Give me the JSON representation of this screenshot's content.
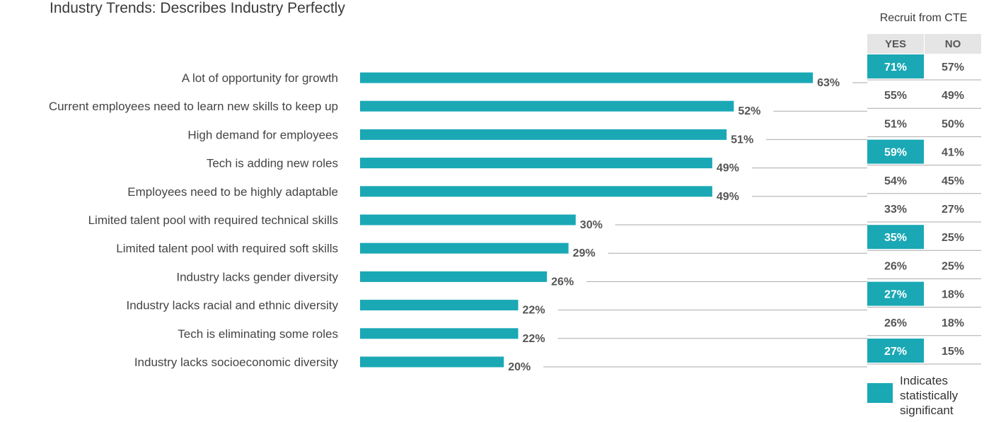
{
  "chart_data": {
    "type": "bar",
    "title": "Industry Trends: Describes Industry Perfectly",
    "categories": [
      "A lot of opportunity for growth",
      "Current employees need to learn new skills to keep up",
      "High demand for employees",
      "Tech is adding new roles",
      "Employees need to be highly adaptable",
      "Limited talent pool with required technical skills",
      "Limited talent pool with required soft skills",
      "Industry lacks gender diversity",
      "Industry lacks racial and ethnic diversity",
      "Tech is eliminating some roles",
      "Industry lacks socioeconomic diversity"
    ],
    "values": [
      63,
      52,
      51,
      49,
      49,
      30,
      29,
      26,
      22,
      22,
      20
    ],
    "value_labels": [
      "63%",
      "52%",
      "51%",
      "49%",
      "49%",
      "30%",
      "29%",
      "26%",
      "22%",
      "22%",
      "20%"
    ],
    "orientation": "horizontal",
    "bar_color": "#1aa8b5"
  },
  "table": {
    "caption": "Recruit from CTE",
    "columns": [
      "YES",
      "NO"
    ],
    "rows": [
      {
        "yes": "71%",
        "no": "57%",
        "yes_significant": true
      },
      {
        "yes": "55%",
        "no": "49%",
        "yes_significant": false
      },
      {
        "yes": "51%",
        "no": "50%",
        "yes_significant": false
      },
      {
        "yes": "59%",
        "no": "41%",
        "yes_significant": true
      },
      {
        "yes": "54%",
        "no": "45%",
        "yes_significant": false
      },
      {
        "yes": "33%",
        "no": "27%",
        "yes_significant": false
      },
      {
        "yes": "35%",
        "no": "25%",
        "yes_significant": true
      },
      {
        "yes": "26%",
        "no": "25%",
        "yes_significant": false
      },
      {
        "yes": "27%",
        "no": "18%",
        "yes_significant": true
      },
      {
        "yes": "26%",
        "no": "18%",
        "yes_significant": false
      },
      {
        "yes": "27%",
        "no": "15%",
        "yes_significant": true
      }
    ]
  },
  "legend": {
    "label": "Indicates\nstatistically\nsignificant",
    "color": "#1aa8b5"
  },
  "colors": {
    "highlight": "#1aa8b5",
    "header_bg": "#e5e5e5",
    "rule": "#aaaaaa",
    "text": "#555555"
  }
}
